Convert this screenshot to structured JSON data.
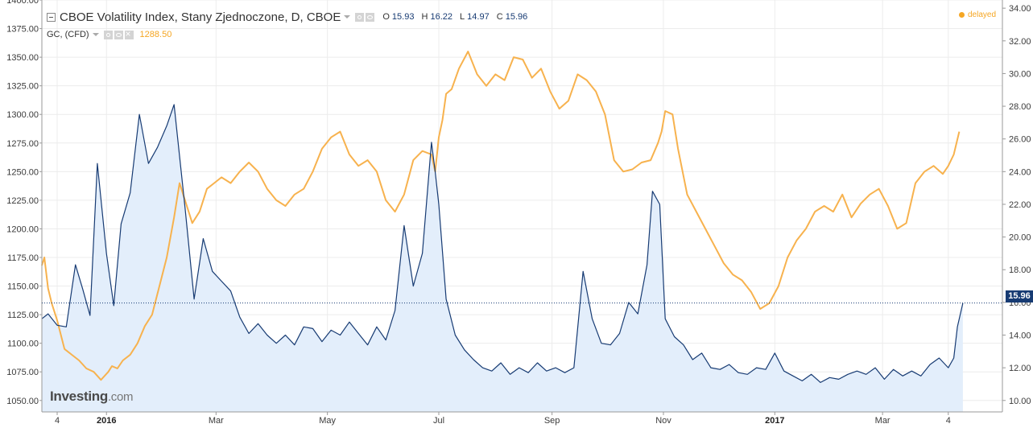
{
  "legend": {
    "title": "CBOE Volatility Index, Stany Zjednoczone, D, CBOE",
    "ohlc": [
      {
        "key": "O",
        "value": "15.93"
      },
      {
        "key": "H",
        "value": "16.22"
      },
      {
        "key": "L",
        "value": "14.97"
      },
      {
        "key": "C",
        "value": "15.96"
      }
    ],
    "overlay_symbol": "GC, (CFD)",
    "overlay_value": "1288.50",
    "status": "delayed",
    "last_value_label": "15.96"
  },
  "branding": {
    "name": "Investing",
    "suffix": ".com"
  },
  "colors": {
    "vix_line": "#173b73",
    "vix_fill": "#e3eefb",
    "gold_line": "#f7b24e",
    "accent": "#f5a623",
    "grid": "#ececec"
  },
  "chart_data": {
    "type": "line",
    "x_axis_labels": [
      "4",
      "2016",
      "Mar",
      "May",
      "Jul",
      "Sep",
      "Nov",
      "2017",
      "Mar",
      "4"
    ],
    "x_axis_label_positions_day": [
      0,
      27,
      87,
      148,
      209,
      271,
      332,
      393,
      452,
      488
    ],
    "left_axis": {
      "ticks": [
        "1400.00",
        "1375.00",
        "1350.00",
        "1325.00",
        "1300.00",
        "1275.00",
        "1250.00",
        "1225.00",
        "1200.00",
        "1175.00",
        "1150.00",
        "1125.00",
        "1100.00",
        "1075.00",
        "1050.00"
      ],
      "range": [
        1040,
        1400
      ],
      "series": "GC, (CFD)"
    },
    "right_axis": {
      "ticks": [
        "34.00",
        "32.00",
        "30.00",
        "28.00",
        "26.00",
        "24.00",
        "22.00",
        "20.00",
        "18.00",
        "16.00",
        "14.00",
        "12.00",
        "10.00"
      ],
      "range": [
        9.3,
        34.5
      ],
      "series": "CBOE Volatility Index"
    },
    "grid": true,
    "series": [
      {
        "name": "CBOE Volatility Index",
        "axis": "right",
        "x": [
          -10,
          -5,
          0,
          5,
          10,
          14,
          18,
          22,
          27,
          31,
          35,
          40,
          45,
          50,
          55,
          60,
          64,
          70,
          75,
          80,
          85,
          90,
          95,
          100,
          105,
          110,
          115,
          120,
          125,
          130,
          135,
          140,
          145,
          150,
          155,
          160,
          165,
          170,
          175,
          180,
          185,
          190,
          195,
          200,
          205,
          207,
          209,
          213,
          218,
          223,
          228,
          233,
          238,
          243,
          248,
          253,
          258,
          263,
          268,
          273,
          278,
          283,
          288,
          293,
          298,
          303,
          308,
          313,
          318,
          323,
          326,
          330,
          333,
          338,
          343,
          348,
          353,
          358,
          363,
          368,
          373,
          378,
          383,
          388,
          393,
          398,
          403,
          408,
          413,
          418,
          423,
          428,
          433,
          438,
          443,
          448,
          453,
          458,
          463,
          468,
          473,
          478,
          483,
          488,
          491,
          493,
          496
        ],
        "values": [
          15.0,
          15.3,
          14.6,
          14.5,
          18.3,
          16.8,
          15.2,
          24.5,
          19.0,
          15.8,
          20.8,
          22.7,
          27.5,
          24.5,
          25.5,
          26.8,
          28.1,
          21.8,
          16.2,
          19.9,
          17.9,
          17.3,
          16.7,
          15.1,
          14.1,
          14.7,
          14.0,
          13.5,
          14.0,
          13.4,
          14.5,
          14.4,
          13.6,
          14.3,
          14.0,
          14.8,
          14.1,
          13.4,
          14.5,
          13.7,
          15.5,
          20.7,
          17.0,
          19.0,
          25.8,
          24.0,
          22.0,
          16.2,
          14.0,
          13.1,
          12.5,
          12.0,
          11.8,
          12.3,
          11.6,
          12.0,
          11.7,
          12.3,
          11.8,
          12.0,
          11.7,
          12.0,
          17.9,
          15.0,
          13.5,
          13.4,
          14.1,
          16.0,
          15.3,
          18.3,
          22.8,
          22.0,
          15.0,
          13.9,
          13.4,
          12.5,
          12.9,
          12.0,
          11.9,
          12.2,
          11.7,
          11.6,
          12.0,
          11.9,
          12.9,
          11.8,
          11.5,
          11.2,
          11.6,
          11.1,
          11.4,
          11.3,
          11.6,
          11.8,
          11.6,
          12.0,
          11.3,
          11.9,
          11.5,
          11.8,
          11.5,
          12.2,
          12.6,
          12.0,
          12.6,
          14.5,
          15.96
        ]
      },
      {
        "name": "GC, (CFD)",
        "axis": "left",
        "x": [
          -10,
          -7,
          -5,
          -3,
          0,
          4,
          8,
          12,
          16,
          20,
          24,
          28,
          30,
          33,
          36,
          40,
          44,
          48,
          52,
          56,
          60,
          64,
          67,
          70,
          74,
          78,
          82,
          86,
          90,
          95,
          100,
          105,
          110,
          115,
          120,
          125,
          130,
          135,
          140,
          145,
          150,
          155,
          160,
          165,
          170,
          175,
          180,
          185,
          190,
          195,
          200,
          205,
          207,
          209,
          211,
          213,
          216,
          220,
          225,
          230,
          235,
          240,
          245,
          250,
          255,
          260,
          265,
          270,
          275,
          280,
          285,
          290,
          295,
          300,
          305,
          310,
          315,
          320,
          325,
          329,
          331,
          333,
          337,
          340,
          345,
          350,
          355,
          360,
          365,
          370,
          375,
          380,
          385,
          390,
          395,
          400,
          405,
          410,
          415,
          420,
          425,
          430,
          435,
          440,
          445,
          450,
          455,
          460,
          465,
          470,
          475,
          480,
          485,
          488,
          491,
          494
        ],
        "values": [
          1168,
          1175,
          1148,
          1135,
          1120,
          1095,
          1090,
          1085,
          1078,
          1075,
          1068,
          1075,
          1080,
          1078,
          1085,
          1090,
          1100,
          1115,
          1125,
          1150,
          1175,
          1210,
          1240,
          1225,
          1205,
          1215,
          1235,
          1240,
          1245,
          1240,
          1250,
          1258,
          1250,
          1235,
          1225,
          1220,
          1230,
          1235,
          1250,
          1270,
          1280,
          1285,
          1265,
          1255,
          1260,
          1250,
          1225,
          1215,
          1230,
          1260,
          1268,
          1265,
          1250,
          1280,
          1295,
          1318,
          1322,
          1340,
          1355,
          1335,
          1325,
          1335,
          1330,
          1350,
          1348,
          1332,
          1340,
          1320,
          1305,
          1312,
          1335,
          1330,
          1320,
          1300,
          1260,
          1250,
          1252,
          1258,
          1260,
          1275,
          1285,
          1303,
          1300,
          1270,
          1230,
          1215,
          1200,
          1185,
          1170,
          1160,
          1155,
          1145,
          1130,
          1135,
          1150,
          1175,
          1190,
          1200,
          1215,
          1220,
          1215,
          1230,
          1210,
          1222,
          1230,
          1235,
          1220,
          1200,
          1205,
          1240,
          1250,
          1255,
          1248,
          1255,
          1265,
          1285
        ]
      }
    ]
  }
}
